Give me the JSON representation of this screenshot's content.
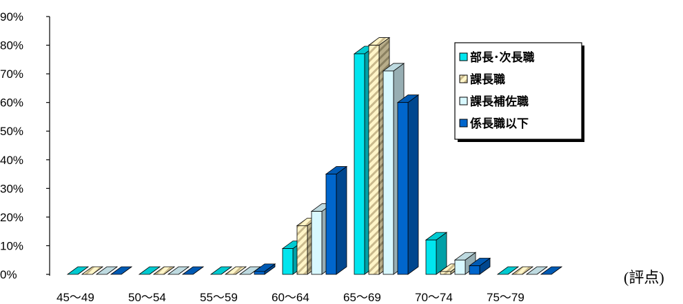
{
  "chart_data": {
    "type": "bar",
    "title": "",
    "xlabel": "(評点)",
    "ylabel": "",
    "ylim": [
      0,
      90
    ],
    "y_ticks": [
      "0%",
      "10%",
      "20%",
      "30%",
      "40%",
      "50%",
      "60%",
      "70%",
      "80%",
      "90%"
    ],
    "categories": [
      "45～49",
      "50～54",
      "55～59",
      "60～64",
      "65～69",
      "70～74",
      "75～79"
    ],
    "legend_position": "top-right",
    "grid": false,
    "series": [
      {
        "name": "部長･次長職",
        "color": "#00E5EE",
        "values": [
          0,
          0,
          0,
          9,
          77,
          12,
          0
        ]
      },
      {
        "name": "課長職",
        "color": "#FFF5C8",
        "values": [
          0,
          0,
          0,
          17,
          80,
          1,
          0
        ]
      },
      {
        "name": "課長補佐職",
        "color": "#D8F8FF",
        "values": [
          0,
          0,
          0,
          22,
          71,
          5,
          0
        ]
      },
      {
        "name": "係長職以下",
        "color": "#0066CC",
        "values": [
          0,
          0,
          1,
          35,
          60,
          3,
          0
        ]
      }
    ]
  }
}
